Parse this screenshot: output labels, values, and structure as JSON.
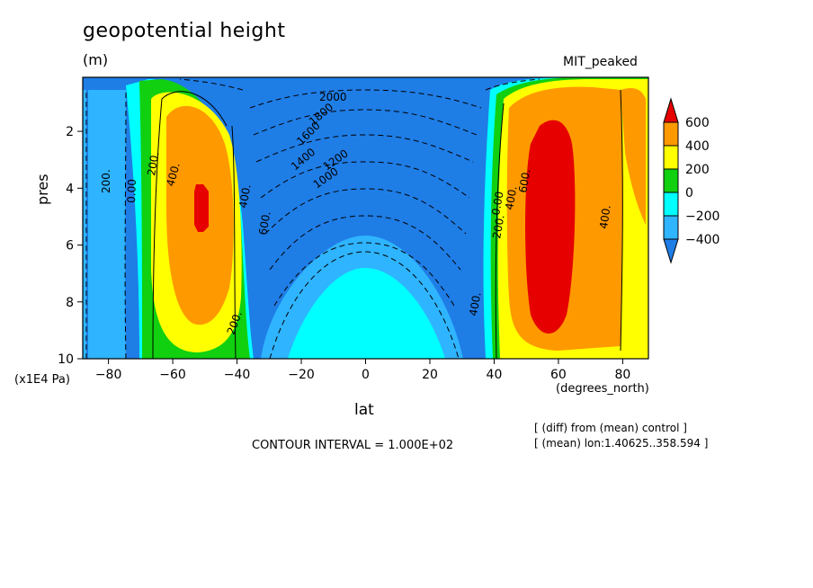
{
  "chart_data": {
    "type": "heatmap",
    "title": "geopotential height",
    "units": "(m)",
    "subtitle": "MIT_peaked",
    "xlabel": "lat",
    "xunit": "(degrees_north)",
    "ylabel": "pres",
    "yunit": "(x1E4 Pa)",
    "xlim": [
      -88,
      88
    ],
    "ylim": [
      10,
      0.1
    ],
    "xticks": [
      -80,
      -60,
      -40,
      -20,
      0,
      20,
      40,
      60,
      80
    ],
    "yticks": [
      2,
      4,
      6,
      8,
      10
    ],
    "colorbar": {
      "levels": [
        -400,
        -200,
        0,
        200,
        400,
        600
      ],
      "labels": [
        "600",
        "400",
        "200",
        "0",
        "-200",
        "-400"
      ],
      "colors": [
        "#1f7de6",
        "#2fb4ff",
        "#00ffff",
        "#10d010",
        "#ffff00",
        "#ff9900",
        "#e60000"
      ]
    },
    "contour_interval": "CONTOUR INTERVAL = 1.000E+02",
    "notes": [
      "[ (diff) from (mean) control ]",
      "[ (mean) lon:1.40625..358.594 ]"
    ],
    "contour_labels": [
      "2000",
      "1800",
      "1600",
      "1400",
      "1200",
      "1000",
      "200.",
      "400.",
      "200.",
      "0.00",
      "400.",
      "600.",
      "400.",
      "200.",
      "0.00",
      "400.",
      "600.",
      "400.",
      "200."
    ]
  }
}
